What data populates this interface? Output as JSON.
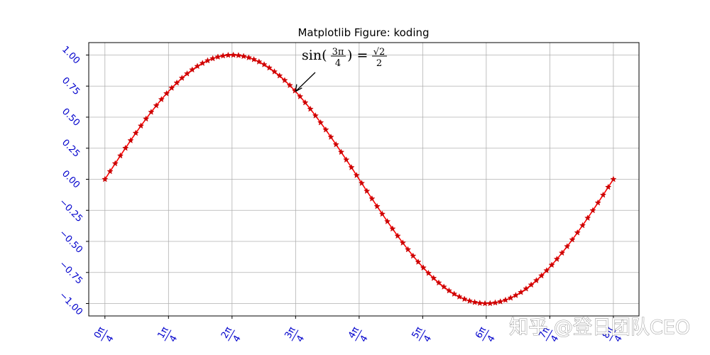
{
  "chart_data": {
    "type": "line",
    "title": "Matplotlib Figure: koding",
    "xlabel": "",
    "ylabel": "",
    "xlim": [
      -0.2,
      6.6
    ],
    "ylim": [
      -1.1,
      1.1
    ],
    "grid": true,
    "x_ticks": [
      {
        "value": 0.0,
        "num": "0π",
        "den": "4"
      },
      {
        "value": 0.7854,
        "num": "1π",
        "den": "4"
      },
      {
        "value": 1.5708,
        "num": "2π",
        "den": "4"
      },
      {
        "value": 2.3562,
        "num": "3π",
        "den": "4"
      },
      {
        "value": 3.1416,
        "num": "4π",
        "den": "4"
      },
      {
        "value": 3.927,
        "num": "5π",
        "den": "4"
      },
      {
        "value": 4.7124,
        "num": "6π",
        "den": "4"
      },
      {
        "value": 5.4978,
        "num": "7π",
        "den": "4"
      },
      {
        "value": 6.2832,
        "num": "8π",
        "den": "4"
      }
    ],
    "y_ticks": [
      {
        "value": 1.0,
        "label": "1.00"
      },
      {
        "value": 0.75,
        "label": "0.75"
      },
      {
        "value": 0.5,
        "label": "0.50"
      },
      {
        "value": 0.25,
        "label": "0.25"
      },
      {
        "value": 0.0,
        "label": "0.00"
      },
      {
        "value": -0.25,
        "label": "−0.25"
      },
      {
        "value": -0.5,
        "label": "−0.50"
      },
      {
        "value": -0.75,
        "label": "−0.75"
      },
      {
        "value": -1.0,
        "label": "−1.00"
      }
    ],
    "series": [
      {
        "function": "sin(x)",
        "x_start": 0,
        "x_end": 6.2832,
        "num_points": 100,
        "color": "#ff0000",
        "marker": "star",
        "x": [
          0.0,
          0.0635,
          0.1269,
          0.1904,
          0.2539,
          0.3173,
          0.3808,
          0.4443,
          0.5077,
          0.5712,
          0.6347,
          0.6981,
          0.7616,
          0.8251,
          0.8885,
          0.952,
          1.0155,
          1.0789,
          1.1424,
          1.2059,
          1.2693,
          1.3328,
          1.3963,
          1.4597,
          1.5232,
          1.5867,
          1.6501,
          1.7136,
          1.7771,
          1.8405,
          1.904,
          1.9675,
          2.0309,
          2.0944,
          2.1579,
          2.2213,
          2.2848,
          2.3483,
          2.4117,
          2.4752,
          2.5387,
          2.6021,
          2.6656,
          2.7291,
          2.7925,
          2.856,
          2.9195,
          2.9829,
          3.0464,
          3.1099,
          3.1733,
          3.2368,
          3.3003,
          3.3637,
          3.4272,
          3.4907,
          3.5541,
          3.6176,
          3.6811,
          3.7445,
          3.808,
          3.8715,
          3.9349,
          3.9984,
          4.0619,
          4.1253,
          4.1888,
          4.2523,
          4.3157,
          4.3792,
          4.4427,
          4.5061,
          4.5696,
          4.6331,
          4.6965,
          4.76,
          4.8235,
          4.8869,
          4.9504,
          5.0139,
          5.0773,
          5.1408,
          5.2043,
          5.2677,
          5.3312,
          5.3947,
          5.4581,
          5.5216,
          5.5851,
          5.6485,
          5.712,
          5.7755,
          5.8389,
          5.9024,
          5.9659,
          6.0293,
          6.0928,
          6.1563,
          6.2197,
          6.2832
        ],
        "y": [
          0.0,
          0.0634,
          0.1266,
          0.1893,
          0.2511,
          0.312,
          0.3717,
          0.4298,
          0.4862,
          0.5406,
          0.5929,
          0.6428,
          0.6901,
          0.7346,
          0.7761,
          0.8146,
          0.8497,
          0.8815,
          0.9096,
          0.9341,
          0.9549,
          0.9718,
          0.9848,
          0.9938,
          0.9989,
          0.9999,
          0.997,
          0.99,
          0.9791,
          0.9643,
          0.9456,
          0.9231,
          0.8968,
          0.866,
          0.8333,
          0.7961,
          0.7557,
          0.7122,
          0.6659,
          0.6169,
          0.5654,
          0.5117,
          0.456,
          0.3986,
          0.3397,
          0.2796,
          0.2185,
          0.1567,
          0.0951,
          0.0317,
          -0.0317,
          -0.0951,
          -0.1567,
          -0.2185,
          -0.2796,
          -0.3397,
          -0.3986,
          -0.456,
          -0.5117,
          -0.5654,
          -0.6169,
          -0.6659,
          -0.7122,
          -0.7557,
          -0.7961,
          -0.8333,
          -0.866,
          -0.8968,
          -0.9231,
          -0.9456,
          -0.9643,
          -0.9791,
          -0.99,
          -0.997,
          -0.9999,
          -0.9989,
          -0.9938,
          -0.9848,
          -0.9718,
          -0.9549,
          -0.9341,
          -0.9096,
          -0.8815,
          -0.8497,
          -0.8146,
          -0.7761,
          -0.7346,
          -0.6901,
          -0.6428,
          -0.5929,
          -0.5406,
          -0.4862,
          -0.4298,
          -0.3717,
          -0.312,
          -0.2511,
          -0.1893,
          -0.1266,
          -0.0634,
          0.0
        ]
      }
    ],
    "annotation": {
      "x": 2.3562,
      "y": 0.7071,
      "fn": "sin(",
      "arg_num": "3π",
      "arg_den": "4",
      "close": ") =",
      "rhs_num": "√2",
      "rhs_den": "2"
    },
    "colors": {
      "line": "#ff0000",
      "marker": "#cc0000",
      "tick_label": "#0000cc",
      "grid": "#b0b0b0",
      "axes": "#000000"
    }
  },
  "watermark": "知乎 @登日团队CEO"
}
